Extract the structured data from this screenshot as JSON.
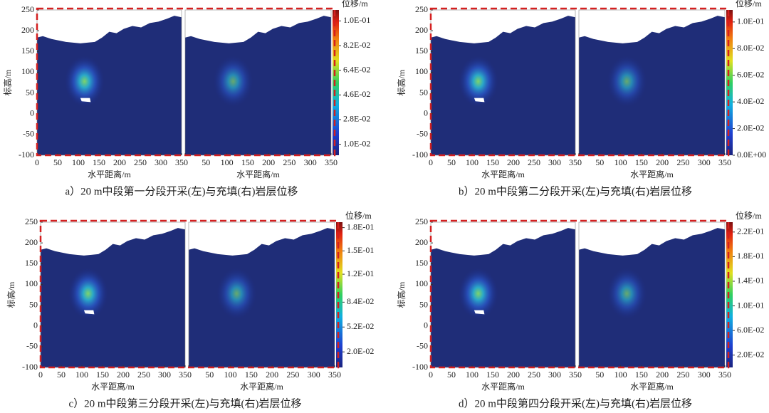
{
  "chart_data": [
    {
      "type": "field",
      "caption": "a）20 m中段第一分段开采(左)与充填(右)岩层位移",
      "ylabel": "标高/m",
      "xlabel": "水平距离/m",
      "xlim": [
        0,
        350
      ],
      "ylim": [
        -100,
        250
      ],
      "xticks": [
        0,
        50,
        100,
        150,
        200,
        250,
        300,
        350
      ],
      "yticks": [
        250,
        200,
        150,
        100,
        50,
        0,
        -50,
        -100
      ],
      "colorbar_label": "位移/m",
      "clim": [
        0.002,
        0.108
      ],
      "colorbar_ticks": [
        {
          "value": 0.1,
          "label": "1.0E-01"
        },
        {
          "value": 0.082,
          "label": "8.2E-02"
        },
        {
          "value": 0.064,
          "label": "6.4E-02"
        },
        {
          "value": 0.046,
          "label": "4.6E-02"
        },
        {
          "value": 0.028,
          "label": "2.8E-02"
        },
        {
          "value": 0.01,
          "label": "1.0E-02"
        }
      ]
    },
    {
      "type": "field",
      "caption": "b）20 m中段第二分段开采(左)与充填(右)岩层位移",
      "ylabel": "标高/m",
      "xlabel": "水平距离/m",
      "xlim": [
        0,
        350
      ],
      "ylim": [
        -100,
        250
      ],
      "xticks": [
        0,
        50,
        100,
        150,
        200,
        250,
        300,
        350
      ],
      "yticks": [
        250,
        200,
        150,
        100,
        50,
        0,
        -50,
        -100
      ],
      "colorbar_label": "位移/m",
      "clim": [
        0,
        0.109
      ],
      "colorbar_ticks": [
        {
          "value": 0.1,
          "label": "1.0E-01"
        },
        {
          "value": 0.08,
          "label": "8.0E-02"
        },
        {
          "value": 0.06,
          "label": "6.0E-02"
        },
        {
          "value": 0.04,
          "label": "4.0E-02"
        },
        {
          "value": 0.02,
          "label": "2.0E-02"
        },
        {
          "value": 0,
          "label": "0.0E+00"
        }
      ]
    },
    {
      "type": "field",
      "caption": "c）20 m中段第三分段开采(左)与充填(右)岩层位移",
      "ylabel": "标高/m",
      "xlabel": "水平距离/m",
      "xlim": [
        0,
        350
      ],
      "ylim": [
        -100,
        250
      ],
      "xticks": [
        0,
        50,
        100,
        150,
        200,
        250,
        300,
        350
      ],
      "yticks": [
        250,
        200,
        150,
        100,
        50,
        0,
        -50,
        -100
      ],
      "colorbar_label": "位移/m",
      "clim": [
        0,
        0.187
      ],
      "colorbar_ticks": [
        {
          "value": 0.18,
          "label": "1.8E-01"
        },
        {
          "value": 0.15,
          "label": "1.5E-01"
        },
        {
          "value": 0.12,
          "label": "1.2E-01"
        },
        {
          "value": 0.084,
          "label": "8.4E-02"
        },
        {
          "value": 0.052,
          "label": "5.2E-02"
        },
        {
          "value": 0.02,
          "label": "2.0E-02"
        }
      ]
    },
    {
      "type": "field",
      "caption": "d）20 m中段第四分段开采(左)与充填(右)岩层位移",
      "ylabel": "标高/m",
      "xlabel": "水平距离/m",
      "xlim": [
        0,
        350
      ],
      "ylim": [
        -100,
        250
      ],
      "xticks": [
        0,
        50,
        100,
        150,
        200,
        250,
        300,
        350
      ],
      "yticks": [
        250,
        200,
        150,
        100,
        50,
        0,
        -50,
        -100
      ],
      "colorbar_label": "位移/m",
      "clim": [
        0,
        0.236
      ],
      "colorbar_ticks": [
        {
          "value": 0.22,
          "label": "2.2E-01"
        },
        {
          "value": 0.18,
          "label": "1.8E-01"
        },
        {
          "value": 0.14,
          "label": "1.4E-01"
        },
        {
          "value": 0.1,
          "label": "1.0E-01"
        },
        {
          "value": 0.06,
          "label": "6.0E-02"
        },
        {
          "value": 0.02,
          "label": "2.0E-02"
        }
      ]
    }
  ]
}
